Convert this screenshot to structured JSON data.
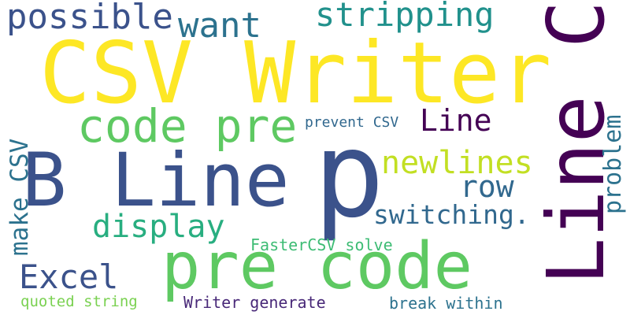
{
  "words": [
    {
      "id": "p",
      "text": "p",
      "color": "#3b528b"
    },
    {
      "id": "csv-writer",
      "text": "CSV Writer",
      "color": "#fde725"
    },
    {
      "id": "line-c",
      "text": "Line C",
      "color": "#440154"
    },
    {
      "id": "b-line",
      "text": "B Line",
      "color": "#3b528b"
    },
    {
      "id": "pre-code",
      "text": "pre code",
      "color": "#5ec962"
    },
    {
      "id": "code-pre",
      "text": "code pre",
      "color": "#5ec962"
    },
    {
      "id": "possible",
      "text": "possible",
      "color": "#3b528b"
    },
    {
      "id": "stripping",
      "text": "stripping",
      "color": "#21918c"
    },
    {
      "id": "want",
      "text": "want",
      "color": "#2c728e"
    },
    {
      "id": "line",
      "text": "Line",
      "color": "#440154"
    },
    {
      "id": "newlines",
      "text": "newlines",
      "color": "#c2df23"
    },
    {
      "id": "row",
      "text": "row",
      "color": "#31688e"
    },
    {
      "id": "switching",
      "text": "switching.",
      "color": "#31688e"
    },
    {
      "id": "display",
      "text": "display",
      "color": "#28ae80"
    },
    {
      "id": "problem",
      "text": "problem",
      "color": "#2c728e"
    },
    {
      "id": "make-csv",
      "text": "make CSV",
      "color": "#2c728e"
    },
    {
      "id": "prevent-csv",
      "text": "prevent CSV",
      "color": "#31688e"
    },
    {
      "id": "excel",
      "text": "Excel",
      "color": "#3b528b"
    },
    {
      "id": "fastercsv-solve",
      "text": "FasterCSV solve",
      "color": "#3dbc74"
    },
    {
      "id": "quoted-string",
      "text": "quoted string",
      "color": "#7ad151"
    },
    {
      "id": "writer-generate",
      "text": "Writer generate",
      "color": "#482878"
    },
    {
      "id": "break-within",
      "text": "break within",
      "color": "#2c728e"
    }
  ]
}
